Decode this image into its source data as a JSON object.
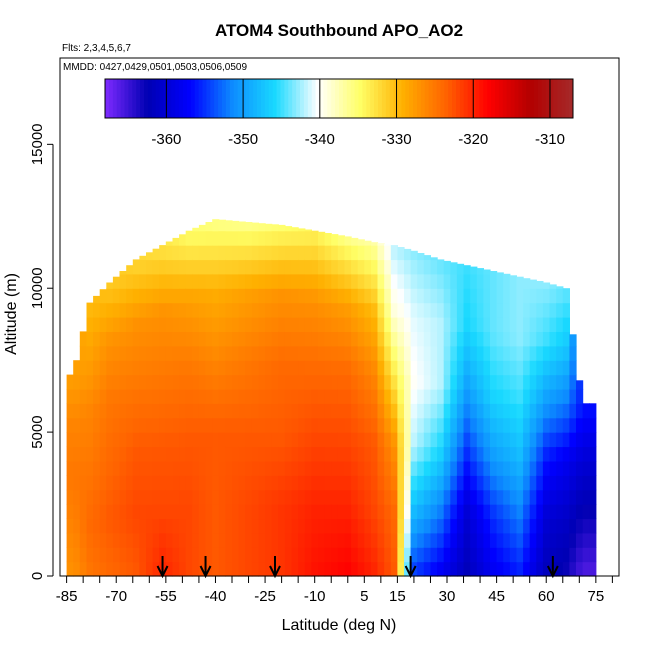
{
  "chart_data": {
    "type": "heatmap",
    "title": "ATOM4 Southbound APO_AO2",
    "flights_note": "Flts: 2,3,4,5,6,7",
    "dates_note": "MMDD: 0427,0429,0501,0503,0506,0509",
    "xlabel": "Latitude (deg N)",
    "ylabel": "Altitude (m)",
    "xlim": [
      -87,
      82
    ],
    "ylim": [
      0,
      18000
    ],
    "x_ticks": [
      -85,
      -70,
      -55,
      -40,
      -25,
      -10,
      5,
      15,
      30,
      45,
      60,
      75
    ],
    "y_ticks": [
      0,
      5000,
      10000,
      15000
    ],
    "colorbar": {
      "range": [
        -368,
        -307
      ],
      "ticks": [
        -360,
        -350,
        -340,
        -330,
        -320,
        -310
      ],
      "colors": [
        "#7f2bff",
        "#0000b3",
        "#0000ff",
        "#0d8cff",
        "#19d9ff",
        "#ffffff",
        "#ffff66",
        "#ffb000",
        "#ff6400",
        "#ff0000",
        "#b30000",
        "#a52a2a"
      ]
    },
    "profile_markers_lat": [
      -56,
      -43,
      -22,
      19,
      62
    ],
    "field_profiles": [
      {
        "lat": -83,
        "top": 7000,
        "v": [
          -327,
          -326,
          -325,
          -326,
          -328
        ]
      },
      {
        "lat": -78,
        "top": 9500,
        "v": [
          -325,
          -324,
          -325,
          -326,
          -328,
          -330
        ]
      },
      {
        "lat": -72,
        "top": 10200,
        "v": [
          -324,
          -323,
          -324,
          -325,
          -327,
          -331
        ]
      },
      {
        "lat": -64,
        "top": 11000,
        "v": [
          -323,
          -322,
          -323,
          -325,
          -327,
          -332
        ]
      },
      {
        "lat": -56,
        "top": 11500,
        "v": [
          -320,
          -322,
          -323,
          -325,
          -327,
          -333
        ]
      },
      {
        "lat": -48,
        "top": 12000,
        "v": [
          -322,
          -322,
          -323,
          -325,
          -328,
          -335
        ]
      },
      {
        "lat": -40,
        "top": 12400,
        "v": [
          -323,
          -323,
          -323,
          -326,
          -329,
          -336
        ]
      },
      {
        "lat": -30,
        "top": 12300,
        "v": [
          -322,
          -322,
          -323,
          -325,
          -328,
          -336
        ]
      },
      {
        "lat": -20,
        "top": 12200,
        "v": [
          -321,
          -321,
          -323,
          -324,
          -327,
          -335
        ]
      },
      {
        "lat": -10,
        "top": 12000,
        "v": [
          -319,
          -320,
          -322,
          -324,
          -327,
          -334
        ]
      },
      {
        "lat": 0,
        "top": 11800,
        "v": [
          -318,
          -320,
          -322,
          -324,
          -328,
          -336
        ]
      },
      {
        "lat": 8,
        "top": 11600,
        "v": [
          -320,
          -322,
          -323,
          -326,
          -330,
          -337
        ]
      },
      {
        "lat": 14,
        "top": 11500,
        "v": [
          -323,
          -324,
          -327,
          -333,
          -339,
          -342
        ]
      },
      {
        "lat": 20,
        "top": 11300,
        "v": [
          -355,
          -348,
          -342,
          -340,
          -341,
          -343
        ]
      },
      {
        "lat": 28,
        "top": 11000,
        "v": [
          -358,
          -352,
          -346,
          -342,
          -342,
          -344
        ]
      },
      {
        "lat": 36,
        "top": 10800,
        "v": [
          -362,
          -360,
          -355,
          -350,
          -346,
          -345
        ]
      },
      {
        "lat": 44,
        "top": 10600,
        "v": [
          -358,
          -355,
          -350,
          -346,
          -344,
          -344
        ]
      },
      {
        "lat": 52,
        "top": 10400,
        "v": [
          -356,
          -352,
          -348,
          -345,
          -343,
          -343
        ]
      },
      {
        "lat": 60,
        "top": 10200,
        "v": [
          -362,
          -360,
          -356,
          -350,
          -345,
          -343
        ]
      },
      {
        "lat": 66,
        "top": 10000,
        "v": [
          -363,
          -361,
          -358,
          -352,
          -347,
          -344
        ]
      },
      {
        "lat": 71,
        "top": 6000,
        "v": [
          -366,
          -363,
          -360,
          -356
        ]
      }
    ]
  }
}
